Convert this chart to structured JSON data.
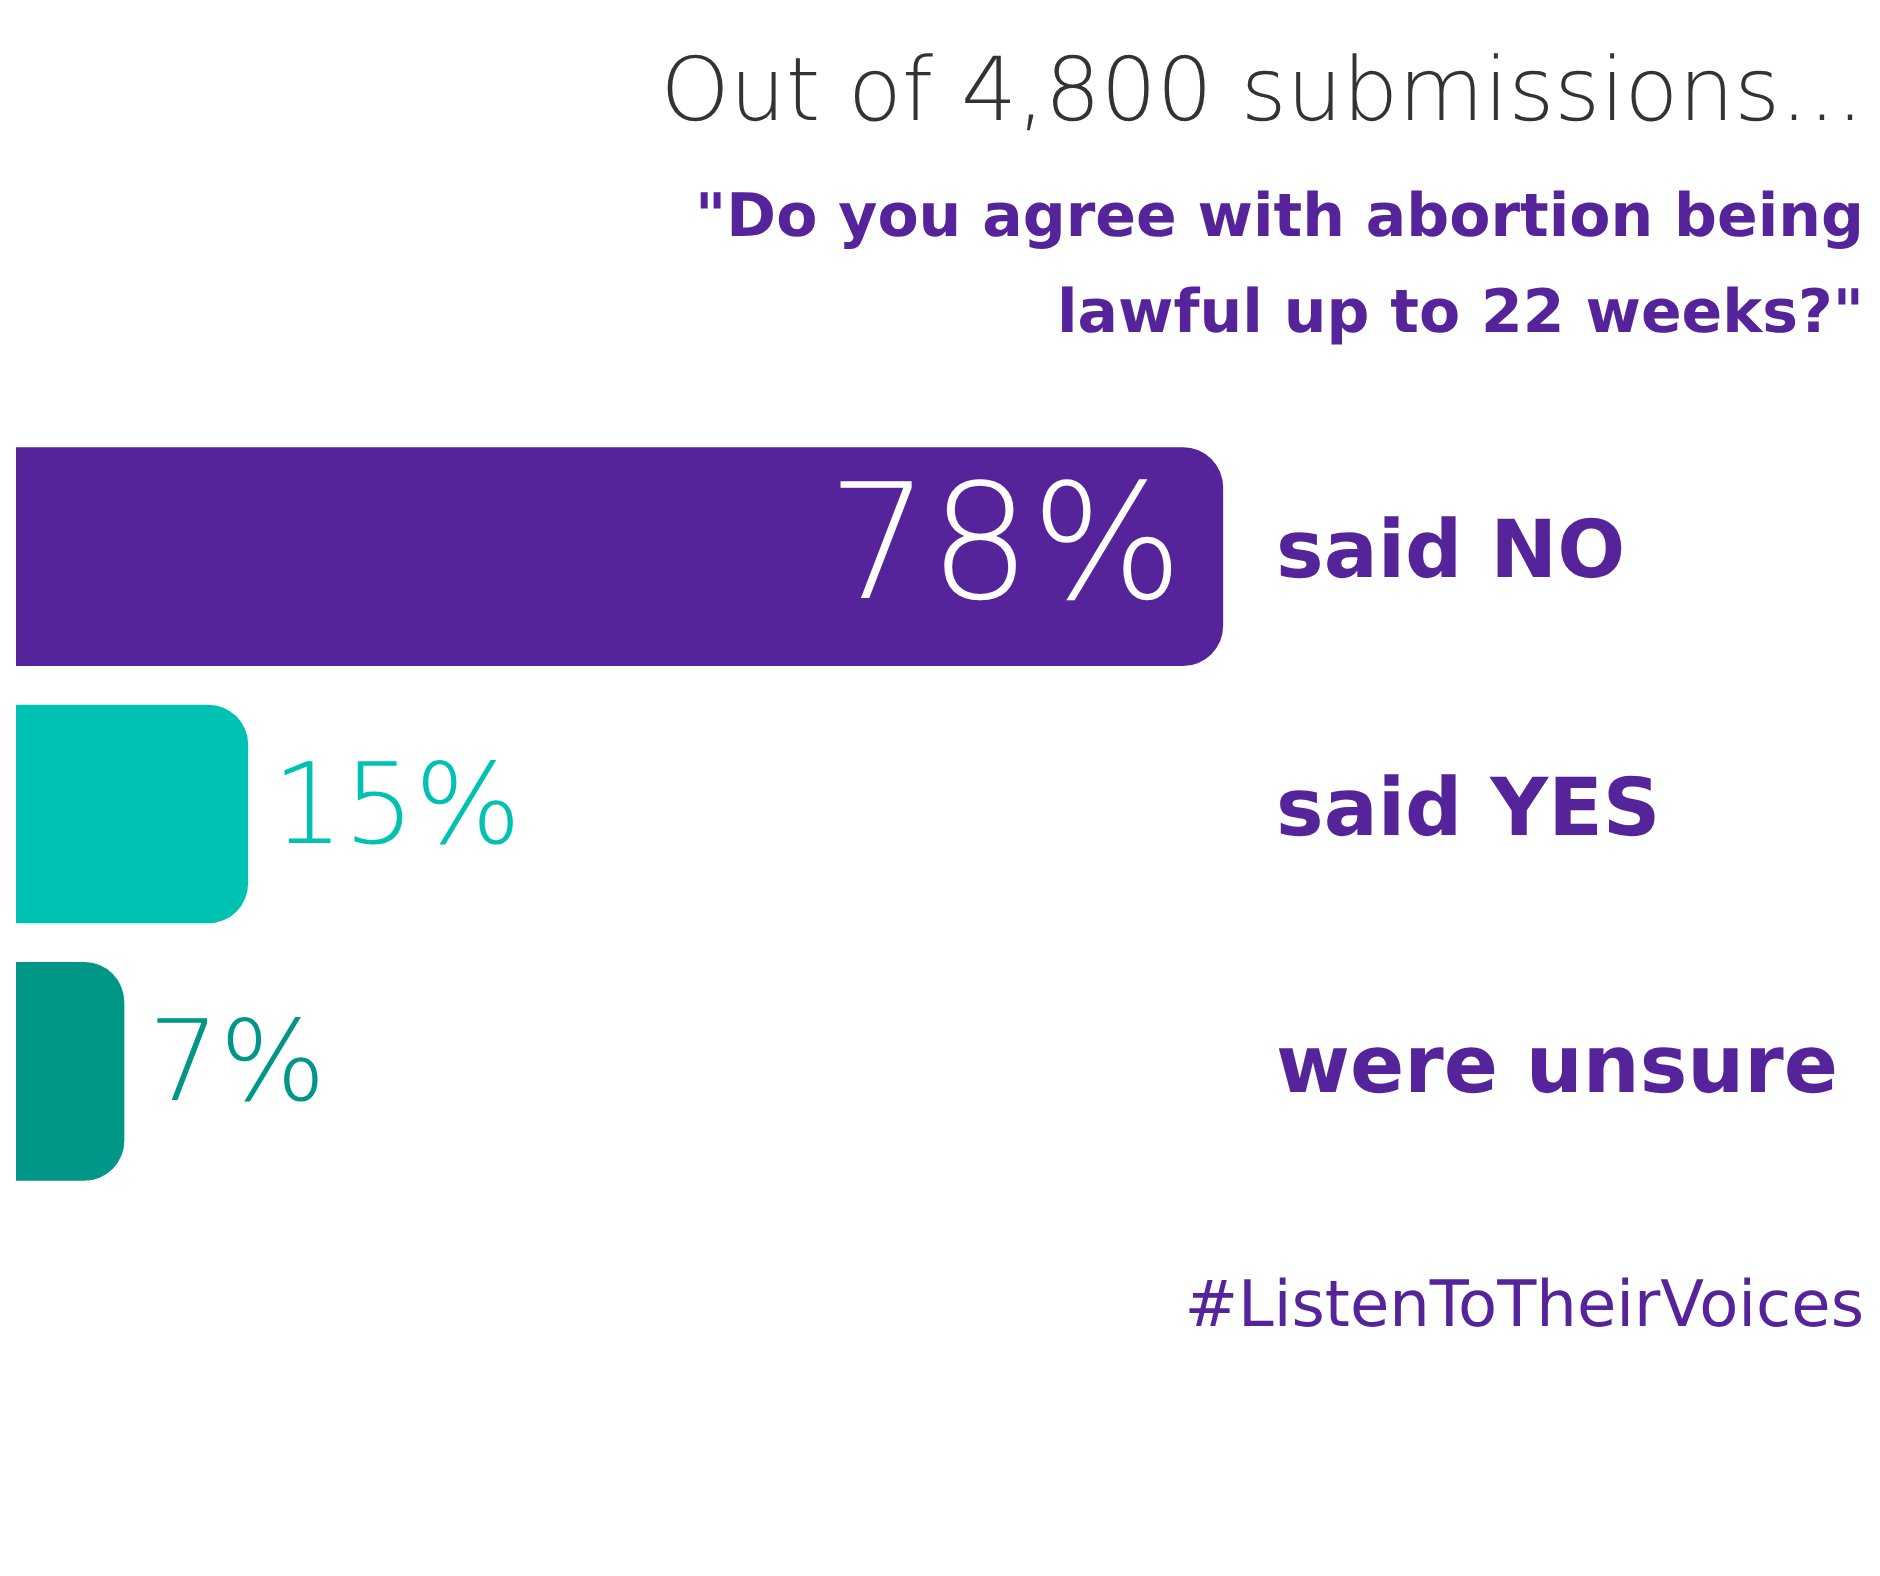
{
  "chart_data": {
    "type": "bar",
    "orientation": "horizontal",
    "title": "Out of 4,800 submissions...",
    "subtitle": "\"Do you agree with abortion being lawful up to 22 weeks?\"",
    "categories": [
      "said NO",
      "said YES",
      "were unsure"
    ],
    "values": [
      78,
      15,
      7
    ],
    "colors": [
      "#55249a",
      "#00c2b2",
      "#009688"
    ],
    "value_labels": [
      "78%",
      "15%",
      "7%"
    ],
    "annotations": [
      "#ListenToTheirVoices"
    ],
    "grid": false,
    "legend": false,
    "tick_labels": "y"
  }
}
